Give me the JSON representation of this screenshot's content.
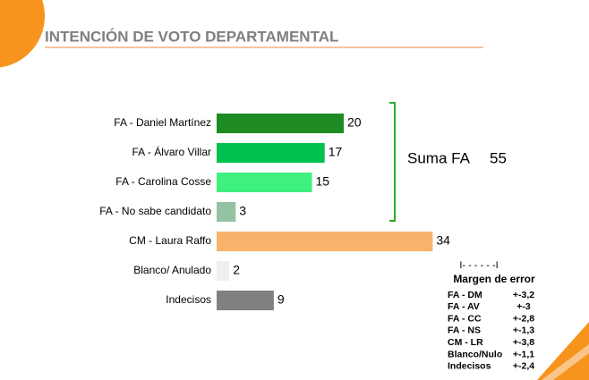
{
  "chart_data": {
    "type": "bar",
    "orientation": "horizontal",
    "title": "INTENCIÓN DE VOTO DEPARTAMENTAL",
    "categories": [
      "FA - Daniel Martínez",
      "FA - Álvaro Villar",
      "FA - Carolina Cosse",
      "FA - No sabe candidato",
      "CM - Laura Raffo",
      "Blanco/ Anulado",
      "Indecisos"
    ],
    "values": [
      20,
      17,
      15,
      3,
      34,
      2,
      9
    ],
    "colors": [
      "#1e8c23",
      "#00c050",
      "#3ff07f",
      "#93c3a3",
      "#f9b26b",
      "#efefef",
      "#808080"
    ],
    "annotation": {
      "label": "Suma FA",
      "value": 55
    },
    "margin_table": {
      "header": "I- - - - - -I",
      "title": "Margen de error",
      "rows": [
        [
          "FA - DM",
          "+-3,2"
        ],
        [
          "FA - AV",
          "+-3"
        ],
        [
          "FA - CC",
          "+-2,8"
        ],
        [
          "FA - NS",
          "+-1,3"
        ],
        [
          "CM - LR",
          "+-3,8"
        ],
        [
          "Blanco/Nulo",
          "+-1,1"
        ],
        [
          "Indecisos",
          "+-2,4"
        ]
      ]
    }
  }
}
